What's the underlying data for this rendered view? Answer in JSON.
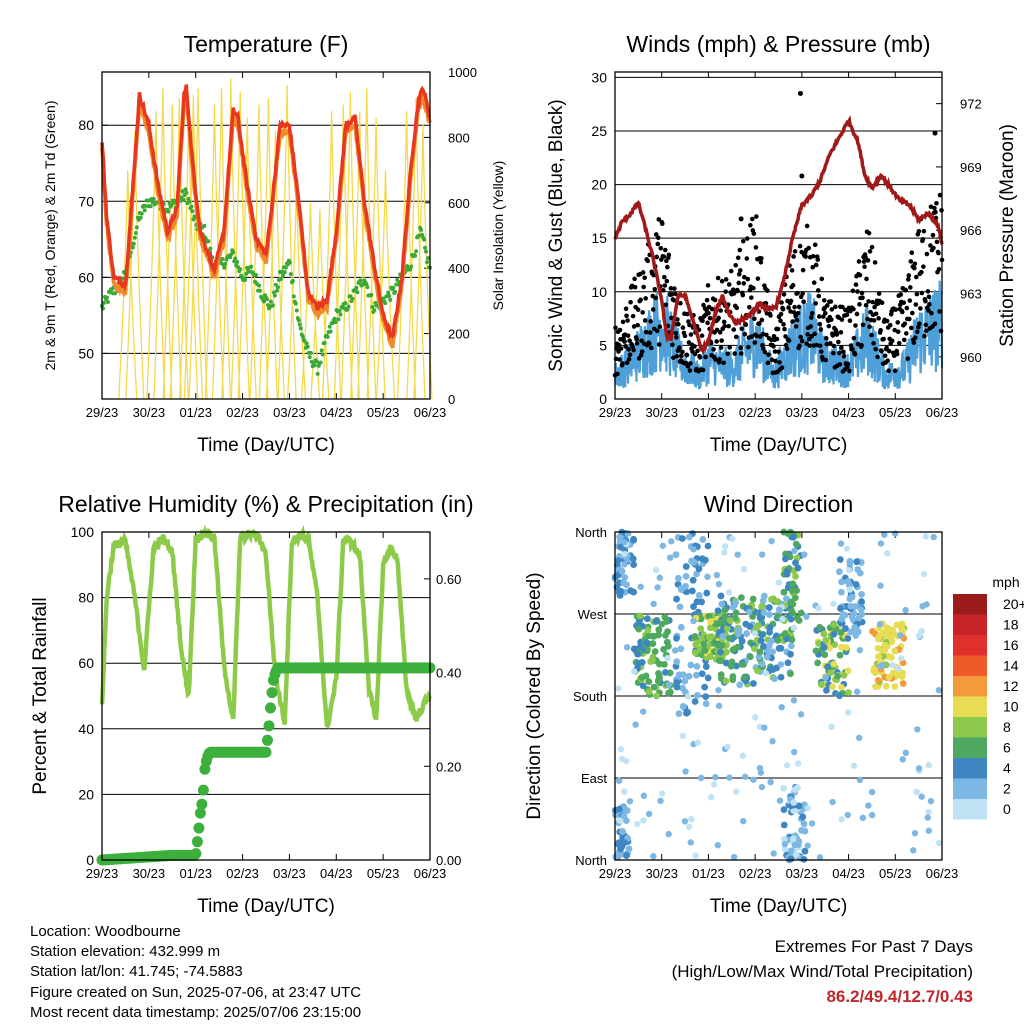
{
  "colors": {
    "temp2m": "#e8361f",
    "temp9m": "#f08a2b",
    "dewpoint": "#3aaa35",
    "solar": "#f5d94a",
    "gust": "#000000",
    "wind": "#4f9fd8",
    "pressure": "#a01818",
    "rh": "#8ccb4a",
    "precip": "#3caf3c",
    "extreme_text": "#c0272d"
  },
  "x_ticks": [
    "29/23",
    "30/23",
    "01/23",
    "02/23",
    "03/23",
    "04/23",
    "05/23",
    "06/23"
  ],
  "x_axis_label": "Time (Day/UTC)",
  "chart_data": [
    {
      "id": "temperature",
      "type": "line",
      "title": "Temperature (F)",
      "ylabel": "2m & 9m T (Red, Orange) & 2m Td (Green)",
      "y2label": "Solar Insolation (Yellow)",
      "ylim": [
        44,
        87
      ],
      "y2lim": [
        0,
        1000
      ],
      "yticks": [
        50,
        60,
        70,
        80
      ],
      "y2ticks": [
        0,
        200,
        400,
        600,
        800,
        1000
      ],
      "grid": true,
      "series": [
        {
          "key": "t2m",
          "x": [
            0,
            0.1,
            0.25,
            0.5,
            0.6,
            0.8,
            1.0,
            1.2,
            1.4,
            1.6,
            1.75,
            1.8,
            1.95,
            2.1,
            2.4,
            2.6,
            2.8,
            2.9,
            3.1,
            3.3,
            3.5,
            3.6,
            3.8,
            4.0,
            4.2,
            4.4,
            4.6,
            4.8,
            5.0,
            5.2,
            5.4,
            5.6,
            5.8,
            6.0,
            6.2,
            6.4,
            6.6,
            6.75,
            6.85,
            7.0
          ],
          "values": [
            78,
            68,
            60,
            59,
            67,
            84,
            80,
            72,
            66,
            69,
            84,
            85,
            74,
            66,
            61,
            66,
            82,
            81,
            72,
            65,
            63,
            68,
            80,
            80,
            70,
            58,
            56,
            57,
            66,
            80,
            81,
            70,
            62,
            55,
            52,
            60,
            75,
            83,
            85,
            81
          ]
        },
        {
          "key": "dewpoint",
          "x": [
            0,
            0.2,
            0.4,
            0.6,
            0.8,
            1.0,
            1.2,
            1.4,
            1.6,
            1.8,
            2.0,
            2.2,
            2.4,
            2.6,
            2.8,
            3.0,
            3.2,
            3.4,
            3.6,
            3.8,
            4.0,
            4.2,
            4.4,
            4.6,
            4.8,
            5.0,
            5.2,
            5.4,
            5.6,
            5.8,
            6.0,
            6.2,
            6.4,
            6.6,
            6.8,
            7.0
          ],
          "values": [
            56,
            58,
            59,
            63,
            68,
            70,
            70,
            69,
            70,
            71,
            67,
            66,
            61,
            62,
            63,
            60,
            61,
            58,
            56,
            60,
            62,
            54,
            50,
            48,
            52,
            55,
            56,
            58,
            60,
            56,
            57,
            58,
            60,
            62,
            66,
            61
          ]
        },
        {
          "key": "solar",
          "peaks": [
            0.55,
            0.7,
            1.15,
            1.3,
            1.5,
            1.65,
            1.85,
            1.95,
            2.05,
            2.4,
            2.55,
            2.75,
            2.95,
            3.1,
            3.35,
            3.55,
            3.7,
            3.95,
            4.15,
            4.45,
            4.65,
            4.9,
            5.15,
            5.3,
            5.5,
            5.65,
            5.85,
            6.05,
            6.5,
            6.7,
            6.85
          ],
          "peak_values": [
            700,
            820,
            880,
            950,
            900,
            920,
            880,
            930,
            950,
            900,
            950,
            980,
            940,
            860,
            900,
            920,
            820,
            960,
            650,
            600,
            580,
            880,
            900,
            940,
            880,
            950,
            860,
            700,
            880,
            920,
            840
          ]
        }
      ]
    },
    {
      "id": "winds",
      "type": "scatter",
      "title": "Winds (mph) & Pressure (mb)",
      "ylabel": "Sonic Wind & Gust (Blue, Black)",
      "y2label": "Station Pressure (Maroon)",
      "ylim": [
        0,
        30.5
      ],
      "y2lim": [
        958,
        973.5
      ],
      "yticks": [
        0,
        5,
        10,
        15,
        20,
        25,
        30
      ],
      "y2ticks": [
        960,
        963,
        966,
        969,
        972
      ],
      "grid": true,
      "series": [
        {
          "key": "pressure",
          "x": [
            0,
            0.15,
            0.3,
            0.5,
            0.65,
            0.8,
            1.0,
            1.1,
            1.2,
            1.35,
            1.5,
            1.7,
            1.85,
            2.0,
            2.15,
            2.3,
            2.45,
            2.6,
            2.75,
            2.9,
            3.1,
            3.3,
            3.45,
            3.6,
            3.8,
            4.0,
            4.2,
            4.4,
            4.6,
            4.8,
            5.0,
            5.2,
            5.35,
            5.5,
            5.7,
            5.9,
            6.1,
            6.3,
            6.5,
            6.7,
            6.9,
            7.0
          ],
          "values": [
            965.6,
            966.4,
            966.7,
            967.3,
            966.1,
            964.8,
            962.7,
            961.0,
            960.9,
            962.9,
            962.9,
            961.5,
            960.3,
            960.7,
            962.1,
            962.9,
            962.0,
            961.6,
            961.8,
            962.0,
            962.5,
            962.2,
            962.4,
            963.5,
            965.6,
            967.2,
            967.6,
            968.4,
            969.6,
            970.4,
            971.2,
            970.2,
            968.6,
            968.0,
            968.6,
            968.0,
            967.4,
            967.2,
            966.5,
            966.8,
            966.3,
            965.4
          ]
        },
        {
          "key": "wind_profile",
          "x": [
            0,
            0.5,
            1.0,
            1.4,
            1.8,
            2.0,
            2.5,
            3.0,
            3.4,
            3.8,
            4.2,
            4.5,
            5.0,
            5.4,
            5.8,
            6.2,
            6.5,
            7.0
          ],
          "values": [
            3,
            6,
            10,
            5,
            3,
            5,
            4,
            8,
            3,
            7,
            9,
            5,
            4,
            8,
            3,
            4,
            8,
            10
          ]
        },
        {
          "key": "gust_profile",
          "x": [
            0,
            0.5,
            1.0,
            1.4,
            1.8,
            2.0,
            2.5,
            3.0,
            3.4,
            3.8,
            4.2,
            4.5,
            5.0,
            5.4,
            5.8,
            6.2,
            6.5,
            7.0
          ],
          "values": [
            6,
            10,
            15,
            8,
            6,
            9,
            10,
            15,
            5,
            12,
            14,
            8,
            7,
            14,
            6,
            9,
            14,
            17
          ]
        }
      ]
    },
    {
      "id": "humidity",
      "type": "line",
      "title": "Relative Humidity (%) & Precipitation (in)",
      "ylabel": "Percent & Total Rainfall",
      "ylim": [
        0,
        100
      ],
      "y2lim": [
        0,
        0.7
      ],
      "yticks": [
        0,
        20,
        40,
        60,
        80,
        100
      ],
      "y2ticks": [
        "0.00",
        "0.20",
        "0.40",
        "0.60"
      ],
      "grid": true,
      "series": [
        {
          "key": "rh",
          "x": [
            0,
            0.1,
            0.25,
            0.5,
            0.7,
            0.9,
            1.1,
            1.3,
            1.5,
            1.7,
            1.85,
            2.0,
            2.2,
            2.4,
            2.6,
            2.8,
            2.95,
            3.1,
            3.3,
            3.5,
            3.7,
            3.9,
            4.05,
            4.2,
            4.4,
            4.6,
            4.8,
            5.0,
            5.15,
            5.3,
            5.5,
            5.7,
            5.85,
            6.0,
            6.15,
            6.3,
            6.5,
            6.7,
            6.85,
            7.0
          ],
          "values": [
            47,
            80,
            96,
            97,
            80,
            58,
            95,
            98,
            94,
            63,
            50,
            98,
            100,
            98,
            60,
            42,
            98,
            99,
            100,
            93,
            56,
            42,
            97,
            99,
            98,
            80,
            40,
            55,
            98,
            97,
            93,
            52,
            42,
            90,
            95,
            92,
            52,
            43,
            47,
            50
          ]
        },
        {
          "key": "precip",
          "x": [
            0,
            1.5,
            2.0,
            2.05,
            2.1,
            2.15,
            2.2,
            2.25,
            2.3,
            3.5,
            3.55,
            3.6,
            3.65,
            3.7,
            3.75,
            7.0
          ],
          "values": [
            0,
            0.01,
            0.01,
            0.05,
            0.1,
            0.13,
            0.2,
            0.22,
            0.23,
            0.23,
            0.27,
            0.33,
            0.38,
            0.4,
            0.41,
            0.41
          ]
        }
      ]
    },
    {
      "id": "direction",
      "type": "scatter",
      "title": "Wind Direction",
      "ylabel": "Direction (Colored By Speed)",
      "yticks": [
        "North",
        "West",
        "South",
        "East",
        "North"
      ],
      "ylim": [
        0,
        360
      ],
      "grid": true,
      "legend": {
        "title": "mph",
        "labels": [
          "20+",
          "18",
          "16",
          "14",
          "12",
          "10",
          "8",
          "6",
          "4",
          "2",
          "0"
        ],
        "colors": [
          "#9b1b1b",
          "#c62428",
          "#e0302b",
          "#f05a2a",
          "#f59a3c",
          "#e6dd55",
          "#8cc84b",
          "#4ea860",
          "#3e86c2",
          "#7db7e3",
          "#bfe3f5"
        ],
        "placement": "right"
      },
      "series": [
        {
          "key": "direction",
          "clusters": [
            {
              "x": [
                0,
                0.4
              ],
              "dir": [
                290,
                360
              ],
              "speed": [
                2,
                4
              ]
            },
            {
              "x": [
                0,
                0.3
              ],
              "dir": [
                0,
                60
              ],
              "speed": [
                2,
                4
              ]
            },
            {
              "x": [
                0.4,
                1.2
              ],
              "dir": [
                180,
                270
              ],
              "speed": [
                4,
                8
              ]
            },
            {
              "x": [
                1.3,
                2.0
              ],
              "dir": [
                160,
                360
              ],
              "speed": [
                2,
                4
              ]
            },
            {
              "x": [
                1.7,
                2.4
              ],
              "dir": [
                220,
                270
              ],
              "speed": [
                6,
                10
              ]
            },
            {
              "x": [
                2.2,
                3.2
              ],
              "dir": [
                190,
                290
              ],
              "speed": [
                2,
                8
              ]
            },
            {
              "x": [
                3.1,
                3.8
              ],
              "dir": [
                200,
                290
              ],
              "speed": [
                2,
                8
              ]
            },
            {
              "x": [
                3.6,
                4.0
              ],
              "dir": [
                260,
                360
              ],
              "speed": [
                4,
                8
              ]
            },
            {
              "x": [
                3.6,
                4.1
              ],
              "dir": [
                0,
                80
              ],
              "speed": [
                0,
                4
              ]
            },
            {
              "x": [
                4.3,
                5.0
              ],
              "dir": [
                180,
                260
              ],
              "speed": [
                4,
                10
              ]
            },
            {
              "x": [
                4.8,
                5.3
              ],
              "dir": [
                250,
                330
              ],
              "speed": [
                2,
                4
              ]
            },
            {
              "x": [
                5.5,
                6.2
              ],
              "dir": [
                190,
                260
              ],
              "speed": [
                8,
                12
              ]
            }
          ]
        }
      ]
    }
  ],
  "info": {
    "location": "Location: Woodbourne",
    "elevation": "Station elevation: 432.999 m",
    "latlon": "Station lat/lon: 41.745; -74.5883",
    "created": "Figure created on Sun, 2025-07-06, at 23:47 UTC",
    "recent": "Most recent data timestamp: 2025/07/06 23:15:00"
  },
  "extremes": {
    "line1": "Extremes For Past 7 Days",
    "line2": "(High/Low/Max Wind/Total Precipitation)",
    "values": "86.2/49.4/12.7/0.43"
  }
}
